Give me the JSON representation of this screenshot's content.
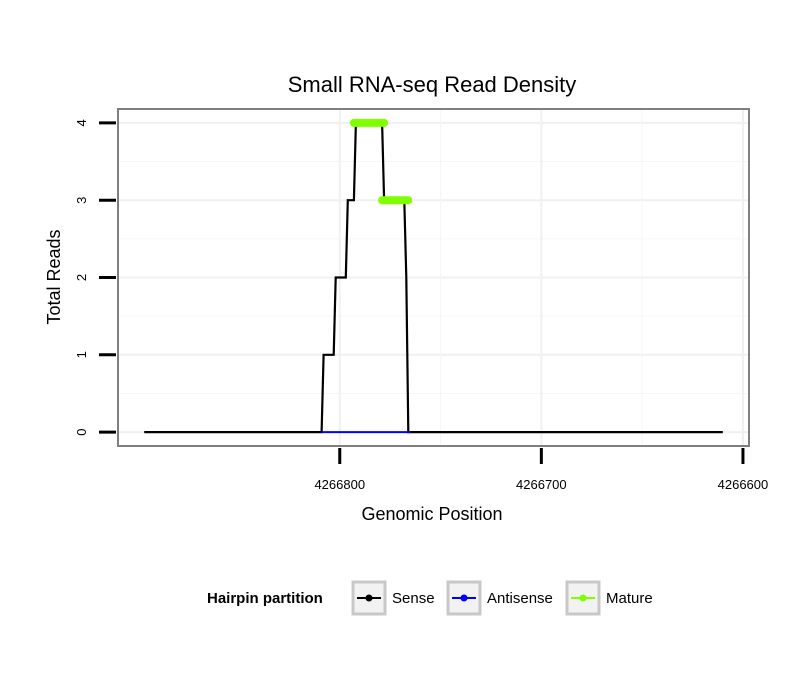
{
  "chart_data": {
    "type": "line",
    "title": "Small RNA-seq Read Density",
    "xlabel": "Genomic Position",
    "ylabel": "Total Reads",
    "x_reversed": true,
    "xlim": [
      4266910,
      4266597
    ],
    "ylim": [
      -0.18,
      4.18
    ],
    "x_ticks": [
      4266800,
      4266700,
      4266600
    ],
    "x_tick_labels": [
      "4266800",
      "4266700",
      "4266600"
    ],
    "y_ticks": [
      0,
      1,
      2,
      3,
      4
    ],
    "y_tick_labels": [
      "0",
      "1",
      "2",
      "3",
      "4"
    ],
    "grid": true,
    "legend": {
      "title": "Hairpin partition",
      "position": "bottom",
      "entries": [
        {
          "label": "Sense",
          "color": "#000000"
        },
        {
          "label": "Antisense",
          "color": "#0000ff"
        },
        {
          "label": "Mature",
          "color": "#7fff00"
        }
      ]
    },
    "series": [
      {
        "name": "Sense",
        "color": "#000000",
        "x": [
          4266897,
          4266809,
          4266808,
          4266803,
          4266802,
          4266797,
          4266796,
          4266793,
          4266792,
          4266779,
          4266778,
          4266768,
          4266767,
          4266766,
          4266765,
          4266610
        ],
        "y": [
          0,
          0,
          1,
          1,
          2,
          2,
          3,
          3,
          4,
          4,
          3,
          3,
          2,
          0,
          0,
          0
        ]
      },
      {
        "name": "Antisense",
        "color": "#0000ff",
        "x": [
          4266809,
          4266765
        ],
        "y": [
          0,
          0
        ]
      },
      {
        "name": "Mature",
        "color": "#7fff00",
        "segments": [
          {
            "x": [
              4266793,
              4266778
            ],
            "y": 4
          },
          {
            "x": [
              4266779,
              4266766
            ],
            "y": 3
          }
        ]
      }
    ]
  }
}
